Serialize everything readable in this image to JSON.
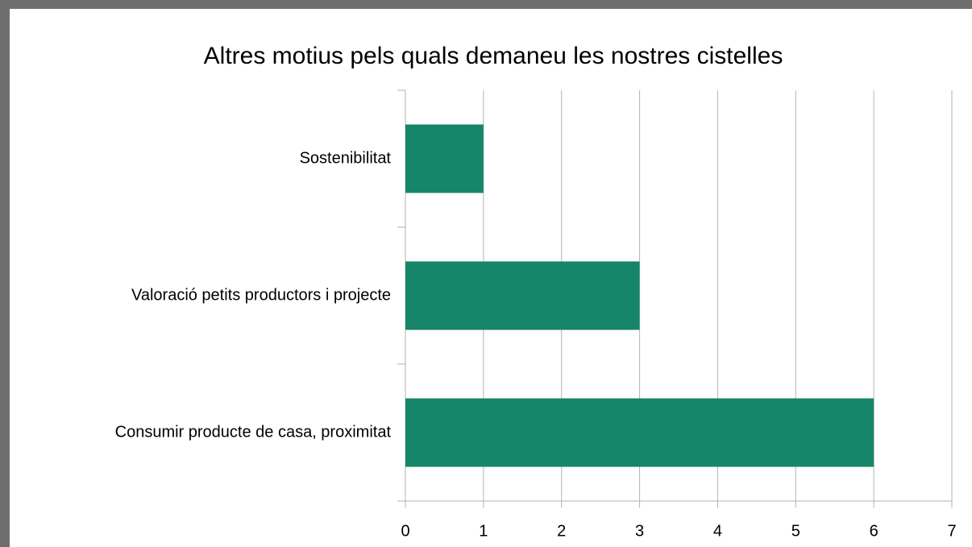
{
  "chart_data": {
    "type": "hbar",
    "title": "Altres motius pels quals demaneu les nostres cistelles",
    "categories": [
      "Sostenibilitat",
      "Valoració petits productors i projecte",
      "Consumir producte de casa, proximitat"
    ],
    "values": [
      1,
      3,
      6
    ],
    "color": "#178569",
    "xlim": [
      0,
      7
    ],
    "xticks": [
      0,
      1,
      2,
      3,
      4,
      5,
      6,
      7
    ],
    "grid": true
  }
}
